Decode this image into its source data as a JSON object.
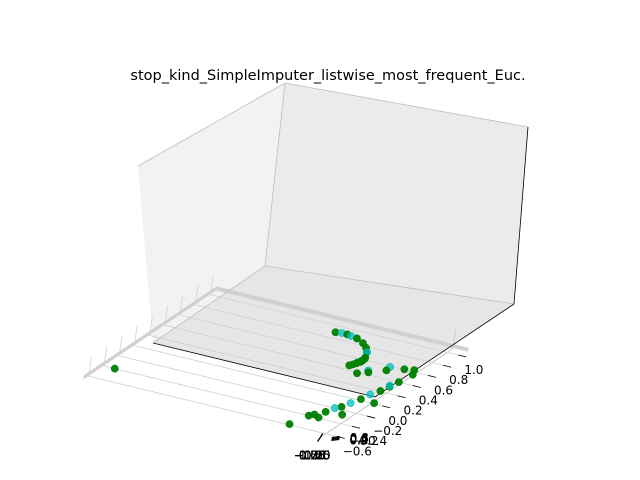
{
  "chart_data": {
    "type": "scatter",
    "projection": "3d",
    "title": "stop_kind_SimpleImputer_listwise_most_frequent_Euc.",
    "grid": true,
    "x_ticks": [
      "−1.00",
      "−0.75",
      "−0.50",
      "−0.25",
      "0.00",
      "0.25",
      "0.50",
      "0.75",
      "1.00"
    ],
    "y_ticks": [
      "−0.6",
      "−0.4",
      "−0.2",
      "0.0",
      "0.2",
      "0.4",
      "0.6",
      "0.8",
      "1.0"
    ],
    "z_ticks": [
      "−0.2",
      "0.0",
      "0.2",
      "0.4",
      "0.6",
      "0.8"
    ],
    "colors": {
      "series_a": "#008000",
      "series_b": "#00bfbf"
    },
    "series": [
      {
        "color": "#008000",
        "points": [
          [
            -1.0,
            -0.55,
            0.0
          ],
          [
            0.7,
            -0.75,
            -0.02
          ],
          [
            0.22,
            0.65,
            0.83
          ],
          [
            0.32,
            0.66,
            0.84
          ],
          [
            0.42,
            0.64,
            0.81
          ],
          [
            0.5,
            0.6,
            0.77
          ],
          [
            0.56,
            0.55,
            0.72
          ],
          [
            0.6,
            0.5,
            0.66
          ],
          [
            0.62,
            0.45,
            0.5
          ],
          [
            0.62,
            0.44,
            0.45
          ],
          [
            0.61,
            0.43,
            0.36
          ],
          [
            0.6,
            0.42,
            0.3
          ],
          [
            0.58,
            0.4,
            0.24
          ],
          [
            0.56,
            0.38,
            0.19
          ],
          [
            0.54,
            0.36,
            0.15
          ],
          [
            0.65,
            0.3,
            0.02
          ],
          [
            0.72,
            0.35,
            0.05
          ],
          [
            0.82,
            0.45,
            0.05
          ],
          [
            0.92,
            0.55,
            0.0
          ],
          [
            0.98,
            0.6,
            -0.1
          ],
          [
            1.0,
            0.55,
            -0.2
          ],
          [
            0.97,
            0.4,
            -0.28
          ],
          [
            0.93,
            0.2,
            -0.32
          ],
          [
            0.88,
            0.0,
            -0.33
          ],
          [
            0.83,
            -0.2,
            -0.32
          ],
          [
            0.78,
            -0.35,
            -0.28
          ],
          [
            0.74,
            -0.45,
            -0.22
          ],
          [
            0.72,
            -0.5,
            -0.18
          ],
          [
            0.78,
            -0.45,
            -0.34
          ],
          [
            0.9,
            -0.3,
            -0.4
          ],
          [
            1.0,
            0.0,
            -0.38
          ],
          [
            0.95,
            0.3,
            -0.3
          ]
        ]
      },
      {
        "color": "#00bfbf",
        "points": [
          [
            0.27,
            0.66,
            0.84
          ],
          [
            0.36,
            0.65,
            0.83
          ],
          [
            0.6,
            0.5,
            0.65
          ],
          [
            0.6,
            0.43,
            0.33
          ],
          [
            0.58,
            0.41,
            0.26
          ],
          [
            0.82,
            0.5,
            0.12
          ],
          [
            0.7,
            0.38,
            0.05
          ],
          [
            0.9,
            0.1,
            -0.3
          ],
          [
            0.8,
            -0.25,
            -0.3
          ],
          [
            0.95,
            0.3,
            -0.25
          ],
          [
            0.85,
            -0.1,
            -0.34
          ]
        ]
      }
    ]
  }
}
